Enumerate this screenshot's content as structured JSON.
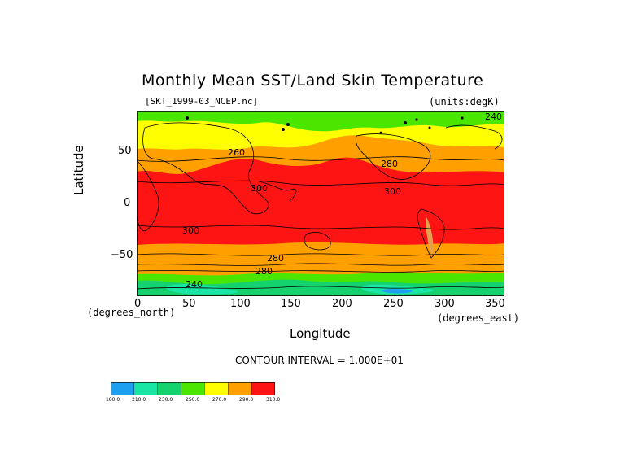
{
  "title": "Monthly Mean SST/Land Skin Temperature",
  "dataset": "[SKT_1999-03_NCEP.nc]",
  "units": "(units:degK)",
  "x_axis": {
    "label": "Longitude",
    "unit_label": "(degrees_east)",
    "ticks": [
      "0",
      "50",
      "100",
      "150",
      "200",
      "250",
      "300",
      "350"
    ]
  },
  "y_axis": {
    "label": "Latitude",
    "unit_label": "(degrees_north)",
    "ticks": [
      "50",
      "0",
      "−50"
    ]
  },
  "contour_interval": "CONTOUR INTERVAL = 1.000E+01",
  "contour_labels": [
    "240",
    "260",
    "280",
    "300",
    "300",
    "300",
    "280",
    "280",
    "240"
  ],
  "colorbar": {
    "labels": [
      "180.0",
      "210.0",
      "230.0",
      "250.0",
      "270.0",
      "290.0",
      "310.0"
    ],
    "colors": [
      "#1ea0f0",
      "#19e6a5",
      "#14d26e",
      "#4be600",
      "#ffff00",
      "#ffa000",
      "#ff1414"
    ]
  },
  "map_colors": {
    "tropics": "#ff1414",
    "midlat": "#ffa000",
    "subpolar": "#ffff00",
    "cold": "#4be600",
    "polar": "#14d26e",
    "ice": "#19e6a5",
    "deep_ice": "#1ea0f0",
    "land_tan": "#e6a050"
  }
}
